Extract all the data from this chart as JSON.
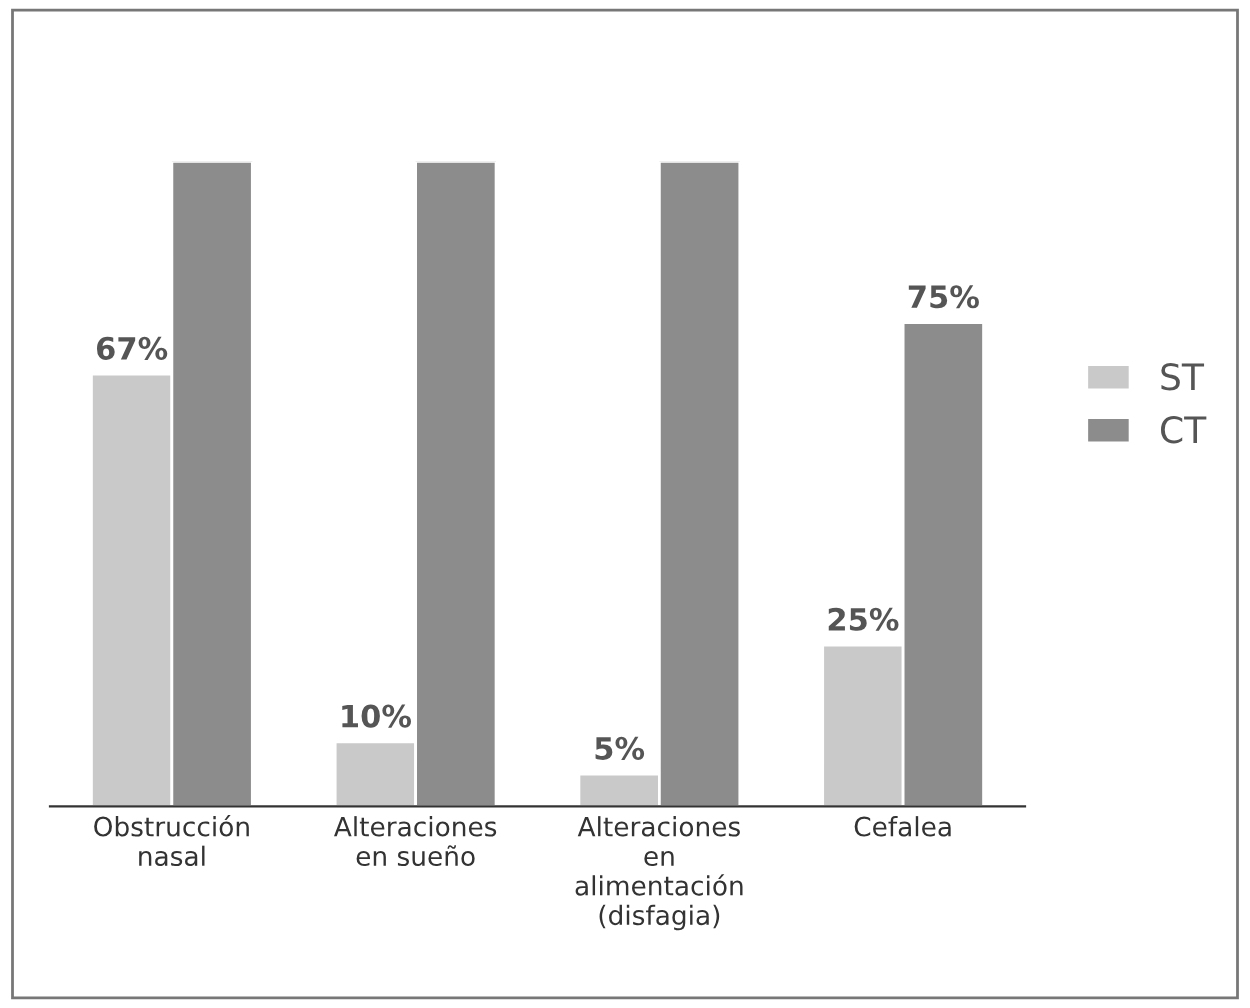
{
  "chart_data": {
    "type": "bar",
    "categories": [
      "Obstrucción\nnasal",
      "Alteraciones\nen sueño",
      "Alteraciones\nen\nalimentación\n(disfagia)",
      "Cefalea"
    ],
    "series": [
      {
        "name": "ST",
        "color": "#c9c9c9",
        "values": [
          67,
          10,
          5,
          25
        ],
        "value_labels": [
          "67%",
          "10%",
          "5%",
          "25%"
        ]
      },
      {
        "name": "CT",
        "color": "#8c8c8c",
        "values": [
          100,
          100,
          100,
          75
        ],
        "value_labels": [
          null,
          null,
          null,
          "75%"
        ]
      }
    ],
    "ylim": [
      0,
      100
    ],
    "tick_labels": "x",
    "legend": "right",
    "grid": false
  }
}
